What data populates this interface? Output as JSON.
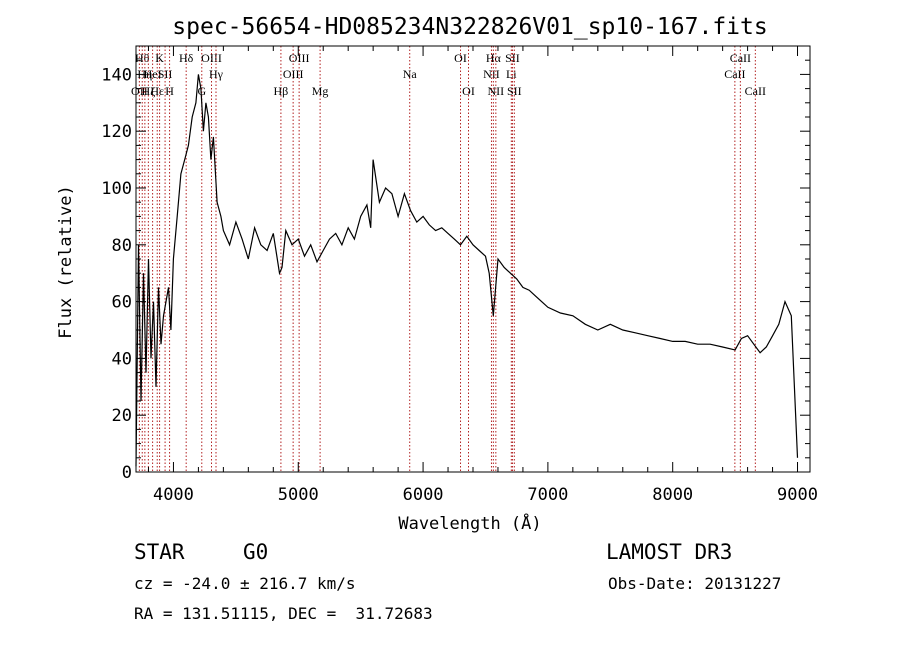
{
  "chart_data": {
    "type": "line",
    "title": "spec-56654-HD085234N322826V01_sp10-167.fits",
    "xlabel": "Wavelength (Å)",
    "ylabel": "Flux (relative)",
    "xlim": [
      3700,
      9100
    ],
    "ylim": [
      0,
      150
    ],
    "xticks": [
      4000,
      5000,
      6000,
      7000,
      8000,
      9000
    ],
    "yticks": [
      0,
      20,
      40,
      60,
      80,
      100,
      120,
      140
    ],
    "grid": false,
    "line_color": "#000000",
    "marker_color": "#b22222",
    "series": [
      {
        "x": [
          3700,
          3720,
          3740,
          3760,
          3780,
          3800,
          3820,
          3840,
          3860,
          3880,
          3900,
          3920,
          3940,
          3960,
          3980,
          4000,
          4030,
          4060,
          4090,
          4120,
          4150,
          4180,
          4200,
          4220,
          4240,
          4260,
          4280,
          4300,
          4320,
          4350,
          4380,
          4400,
          4450,
          4500,
          4550,
          4600,
          4650,
          4700,
          4750,
          4800,
          4850,
          4870,
          4900,
          4950,
          5000,
          5050,
          5100,
          5150,
          5200,
          5250,
          5300,
          5350,
          5400,
          5450,
          5500,
          5550,
          5580,
          5600,
          5650,
          5700,
          5750,
          5800,
          5850,
          5900,
          5950,
          6000,
          6050,
          6100,
          6150,
          6200,
          6250,
          6300,
          6350,
          6400,
          6450,
          6500,
          6530,
          6563,
          6600,
          6650,
          6700,
          6750,
          6800,
          6850,
          6900,
          6950,
          7000,
          7100,
          7200,
          7300,
          7400,
          7500,
          7600,
          7700,
          7800,
          7900,
          8000,
          8100,
          8200,
          8300,
          8400,
          8500,
          8550,
          8600,
          8650,
          8700,
          8750,
          8800,
          8850,
          8900,
          8950,
          9000
        ],
        "y": [
          2,
          80,
          25,
          70,
          35,
          75,
          40,
          60,
          30,
          65,
          45,
          55,
          60,
          65,
          50,
          75,
          90,
          105,
          110,
          115,
          125,
          130,
          140,
          135,
          120,
          130,
          125,
          110,
          118,
          95,
          90,
          85,
          80,
          88,
          82,
          75,
          86,
          80,
          78,
          84,
          70,
          72,
          85,
          80,
          82,
          76,
          80,
          74,
          78,
          82,
          84,
          80,
          86,
          82,
          90,
          94,
          86,
          110,
          95,
          100,
          98,
          90,
          98,
          92,
          88,
          90,
          87,
          85,
          86,
          84,
          82,
          80,
          83,
          80,
          78,
          76,
          70,
          55,
          75,
          72,
          70,
          68,
          65,
          64,
          62,
          60,
          58,
          56,
          55,
          52,
          50,
          52,
          50,
          49,
          48,
          47,
          46,
          46,
          45,
          45,
          44,
          43,
          47,
          48,
          45,
          42,
          44,
          48,
          52,
          60,
          55,
          5
        ]
      }
    ],
    "line_markers": [
      {
        "x": 3727,
        "row": 3,
        "label": "OII"
      },
      {
        "x": 3750,
        "row": 1,
        "label": "Hθ"
      },
      {
        "x": 3771,
        "row": 2,
        "label": "Hη"
      },
      {
        "x": 3799,
        "row": 3,
        "label": "Hζ"
      },
      {
        "x": 3833,
        "row": 2,
        "label": "HeI"
      },
      {
        "x": 3870,
        "row": 3,
        "label": "Hε"
      },
      {
        "x": 3889,
        "row": 1,
        "label": "K"
      },
      {
        "x": 3933,
        "row": 2,
        "label": "SII"
      },
      {
        "x": 3969,
        "row": 3,
        "label": "H"
      },
      {
        "x": 4102,
        "row": 1,
        "label": "Hδ"
      },
      {
        "x": 4227,
        "row": 3,
        "label": "G"
      },
      {
        "x": 4305,
        "row": 1,
        "label": "OIII"
      },
      {
        "x": 4341,
        "row": 2,
        "label": "Hγ"
      },
      {
        "x": 4861,
        "row": 3,
        "label": "Hβ"
      },
      {
        "x": 4959,
        "row": 2,
        "label": "OIII"
      },
      {
        "x": 5007,
        "row": 1,
        "label": "OIII"
      },
      {
        "x": 5175,
        "row": 3,
        "label": "Mg"
      },
      {
        "x": 5893,
        "row": 2,
        "label": "Na"
      },
      {
        "x": 6300,
        "row": 1,
        "label": "OI"
      },
      {
        "x": 6364,
        "row": 3,
        "label": "OI"
      },
      {
        "x": 6548,
        "row": 2,
        "label": "NII"
      },
      {
        "x": 6563,
        "row": 1,
        "label": "Hα"
      },
      {
        "x": 6583,
        "row": 3,
        "label": "NII"
      },
      {
        "x": 6707,
        "row": 2,
        "label": "Li"
      },
      {
        "x": 6716,
        "row": 1,
        "label": "SII"
      },
      {
        "x": 6731,
        "row": 3,
        "label": "SII"
      },
      {
        "x": 8498,
        "row": 2,
        "label": "CaII"
      },
      {
        "x": 8542,
        "row": 1,
        "label": "CaII"
      },
      {
        "x": 8662,
        "row": 3,
        "label": "CaII"
      }
    ]
  },
  "info": {
    "object_class": "STAR",
    "subclass": "G0",
    "survey": "LAMOST DR3",
    "redshift": "cz = -24.0 ± 216.7 km/s",
    "obs_date": "Obs-Date: 20131227",
    "coords": "RA = 131.51115, DEC =  31.72683"
  }
}
